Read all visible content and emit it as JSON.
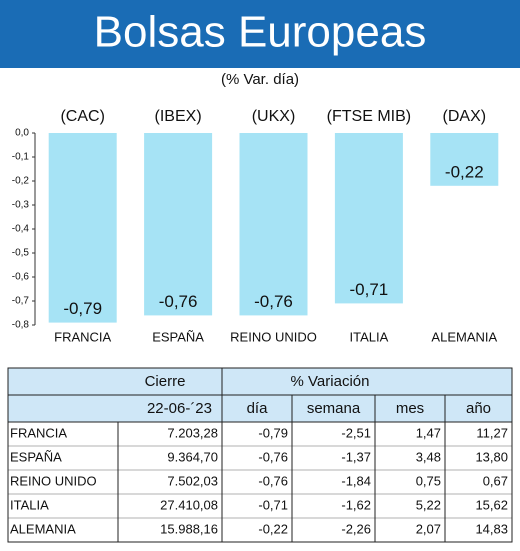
{
  "chart_data": {
    "type": "bar",
    "title": "Bolsas Europeas",
    "subtitle": "(% Var. día)",
    "categories": [
      "FRANCIA",
      "ESPAÑA",
      "REINO UNIDO",
      "ITALIA",
      "ALEMANIA"
    ],
    "indices": [
      "(CAC)",
      "(IBEX)",
      "(UKX)",
      "(FTSE MIB)",
      "(DAX)"
    ],
    "values": [
      -0.79,
      -0.76,
      -0.76,
      -0.71,
      -0.22
    ],
    "value_labels": [
      "-0,79",
      "-0,76",
      "-0,76",
      "-0,71",
      "-0,22"
    ],
    "color": "#a6e3f5",
    "ylim": [
      -0.8,
      0
    ],
    "yticks": [
      {
        "value": 0,
        "label": "0,0"
      },
      {
        "value": -0.1,
        "label": "-0,1"
      },
      {
        "value": -0.2,
        "label": "-0,2"
      },
      {
        "value": -0.3,
        "label": "-0,3"
      },
      {
        "value": -0.4,
        "label": "-0,4"
      },
      {
        "value": -0.5,
        "label": "-0,5"
      },
      {
        "value": -0.6,
        "label": "-0,6"
      },
      {
        "value": -0.7,
        "label": "-0,7"
      },
      {
        "value": -0.8,
        "label": "-0,8"
      }
    ]
  },
  "table": {
    "header": [
      "Cierre",
      "% Variación"
    ],
    "subheader": [
      "22-06-´23",
      "día",
      "semana",
      "mes",
      "año"
    ],
    "rows": [
      [
        "FRANCIA",
        "7.203,28",
        "-0,79",
        "-2,51",
        "1,47",
        "11,27"
      ],
      [
        "ESPAÑA",
        "9.364,70",
        "-0,76",
        "-1,37",
        "3,48",
        "13,80"
      ],
      [
        "REINO UNIDO",
        "7.502,03",
        "-0,76",
        "-1,84",
        "0,75",
        "0,67"
      ],
      [
        "ITALIA",
        "27.410,08",
        "-0,71",
        "-1,62",
        "5,22",
        "15,62"
      ],
      [
        "ALEMANIA",
        "15.988,16",
        "-0,22",
        "-2,26",
        "2,07",
        "14,83"
      ]
    ]
  }
}
